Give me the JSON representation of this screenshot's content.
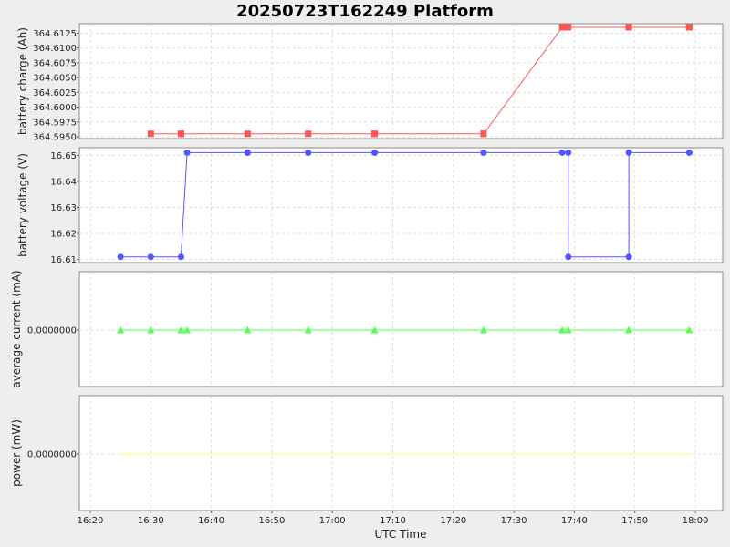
{
  "chart_data": {
    "type": "line",
    "title": "20250723T162249 Platform",
    "xlabel": "UTC Time",
    "x_ticks": [
      "16:20",
      "16:30",
      "16:40",
      "16:50",
      "17:00",
      "17:10",
      "17:20",
      "17:30",
      "17:40",
      "17:50",
      "18:00"
    ],
    "grid": true,
    "panels": [
      {
        "name": "battery-charge",
        "ylabel": "battery charge (Ah)",
        "ylim": [
          364.595,
          364.6135
        ],
        "y_ticks": [
          "364.5950",
          "364.5975",
          "364.6000",
          "364.6025",
          "364.6050",
          "364.6075",
          "364.6100",
          "364.6125"
        ],
        "y_tick_values": [
          364.595,
          364.5975,
          364.6,
          364.6025,
          364.605,
          364.6075,
          364.61,
          364.6125
        ],
        "color": "#ff5555",
        "marker": "square",
        "x": [
          "16:30",
          "16:35",
          "16:35",
          "16:46",
          "16:56",
          "17:07",
          "17:07",
          "17:25",
          "17:25",
          "17:38",
          "17:39",
          "17:49",
          "17:49",
          "17:59",
          "17:59"
        ],
        "y": [
          364.5955,
          364.5955,
          364.5955,
          364.5955,
          364.5955,
          364.5955,
          364.5955,
          364.5955,
          364.5955,
          364.6135,
          364.6135,
          364.6135,
          364.6135,
          364.6135,
          364.6135
        ]
      },
      {
        "name": "battery-voltage",
        "ylabel": "battery voltage (V)",
        "ylim": [
          16.6095,
          16.6515
        ],
        "y_ticks": [
          "16.61",
          "16.62",
          "16.63",
          "16.64",
          "16.65"
        ],
        "y_tick_values": [
          16.61,
          16.62,
          16.63,
          16.64,
          16.65
        ],
        "color": "#5555ff",
        "marker": "circle",
        "x": [
          "16:25",
          "16:30",
          "16:35",
          "16:36",
          "16:46",
          "16:46",
          "16:56",
          "16:56",
          "17:07",
          "17:07",
          "17:25",
          "17:25",
          "17:38",
          "17:39",
          "17:39",
          "17:49",
          "17:49",
          "17:59",
          "17:59"
        ],
        "y": [
          16.611,
          16.611,
          16.611,
          16.651,
          16.651,
          16.651,
          16.651,
          16.651,
          16.651,
          16.651,
          16.651,
          16.651,
          16.651,
          16.651,
          16.611,
          16.611,
          16.651,
          16.651,
          16.651
        ]
      },
      {
        "name": "average-current",
        "ylabel": "average current (mA)",
        "ylim": [
          -1,
          1
        ],
        "y_ticks": [
          "0.0000000"
        ],
        "y_tick_values": [
          0
        ],
        "color": "#55ff55",
        "marker": "triangle",
        "x": [
          "16:25",
          "16:25",
          "16:30",
          "16:35",
          "16:36",
          "16:46",
          "16:46",
          "16:56",
          "16:56",
          "17:07",
          "17:07",
          "17:25",
          "17:25",
          "17:38",
          "17:39",
          "17:49",
          "17:49",
          "17:59",
          "17:59"
        ],
        "y": [
          0,
          0,
          0,
          0,
          0,
          0,
          0,
          0,
          0,
          0,
          0,
          0,
          0,
          0,
          0,
          0,
          0,
          0,
          0
        ]
      },
      {
        "name": "power",
        "ylabel": "power (mW)",
        "ylim": [
          -1,
          1
        ],
        "y_ticks": [
          "0.0000000"
        ],
        "y_tick_values": [
          0
        ],
        "color": "#ffff55",
        "marker": "none",
        "x": [
          "16:25",
          "17:59"
        ],
        "y": [
          0,
          0
        ]
      }
    ]
  }
}
